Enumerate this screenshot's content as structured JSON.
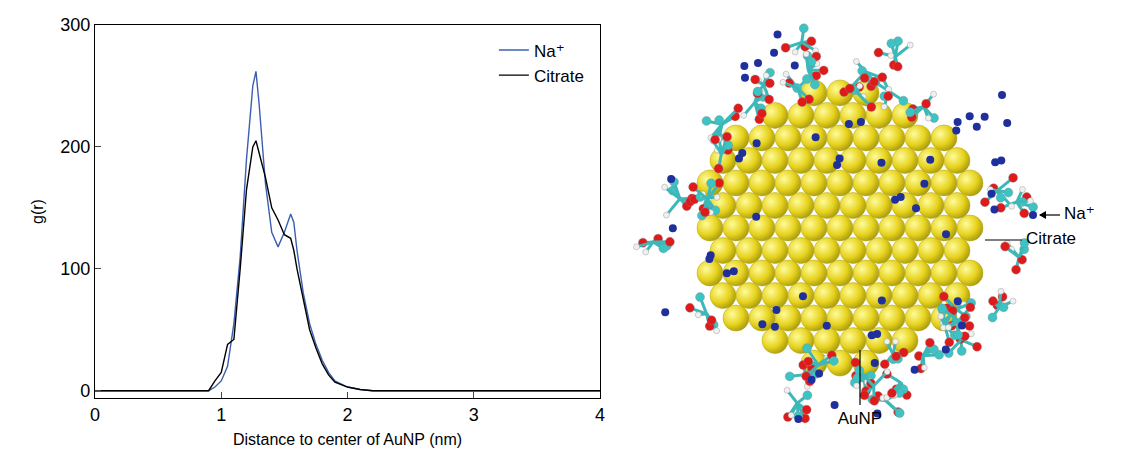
{
  "chart_data": {
    "type": "line",
    "xlabel": "Distance to center of AuNP (nm)",
    "ylabel": "g(r)",
    "x": [
      0,
      0.9,
      0.95,
      1.0,
      1.05,
      1.1,
      1.15,
      1.2,
      1.25,
      1.275,
      1.3,
      1.35,
      1.4,
      1.45,
      1.5,
      1.55,
      1.575,
      1.6,
      1.65,
      1.7,
      1.75,
      1.8,
      1.85,
      1.9,
      2.0,
      2.1,
      2.2,
      4
    ],
    "series": [
      {
        "name": "Na⁺",
        "color": "#3a5fb0",
        "values": [
          0,
          0,
          3,
          8,
          20,
          55,
          110,
          190,
          250,
          262,
          235,
          170,
          130,
          118,
          130,
          145,
          138,
          115,
          80,
          55,
          38,
          25,
          15,
          8,
          3,
          1,
          0,
          0
        ]
      },
      {
        "name": "Citrate",
        "color": "#000000",
        "values": [
          0,
          0,
          8,
          15,
          38,
          42,
          100,
          165,
          200,
          205,
          195,
          175,
          150,
          140,
          128,
          125,
          115,
          100,
          75,
          50,
          35,
          22,
          13,
          7,
          3,
          1,
          0,
          0
        ]
      }
    ],
    "xlim": [
      0,
      4
    ],
    "xticks": [
      0,
      1,
      2,
      3,
      4
    ],
    "ylim": [
      -6,
      300
    ],
    "yticks": [
      0,
      100,
      200,
      300
    ],
    "grid": false,
    "legend": "upper right"
  },
  "illustration": {
    "labels": {
      "ion": "Na⁺",
      "ligand": "Citrate",
      "particle": "AuNP"
    }
  }
}
